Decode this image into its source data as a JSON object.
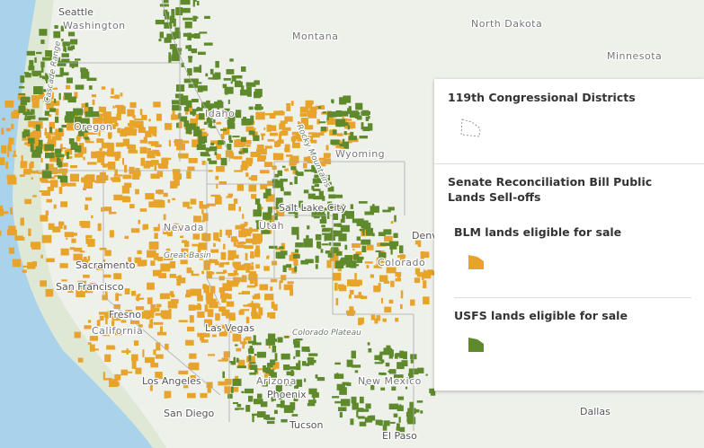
{
  "map": {
    "labels": [
      "Seattle",
      "Washington",
      "Montana",
      "North Dakota",
      "Minnesota",
      "Oregon",
      "Idaho",
      "Rocky Mountains",
      "Wyoming",
      "Salt Lake City",
      "Nevada",
      "Great Basin",
      "Utah",
      "Colorado",
      "Denv",
      "Sacramento",
      "San Francisco",
      "Fresno",
      "California",
      "Las Vegas",
      "Colorado Plateau",
      "Los Angeles",
      "San Diego",
      "Arizona",
      "Phoenix",
      "New Mexico",
      "Tucson",
      "El Paso",
      "Dallas",
      "Cascade Range"
    ]
  },
  "legend": {
    "layers": [
      {
        "title": "119th Congressional Districts"
      },
      {
        "title": "Senate Reconciliation Bill Public Lands Sell-offs",
        "items": [
          "BLM lands eligible for sale",
          "USFS lands eligible for sale"
        ]
      }
    ]
  }
}
